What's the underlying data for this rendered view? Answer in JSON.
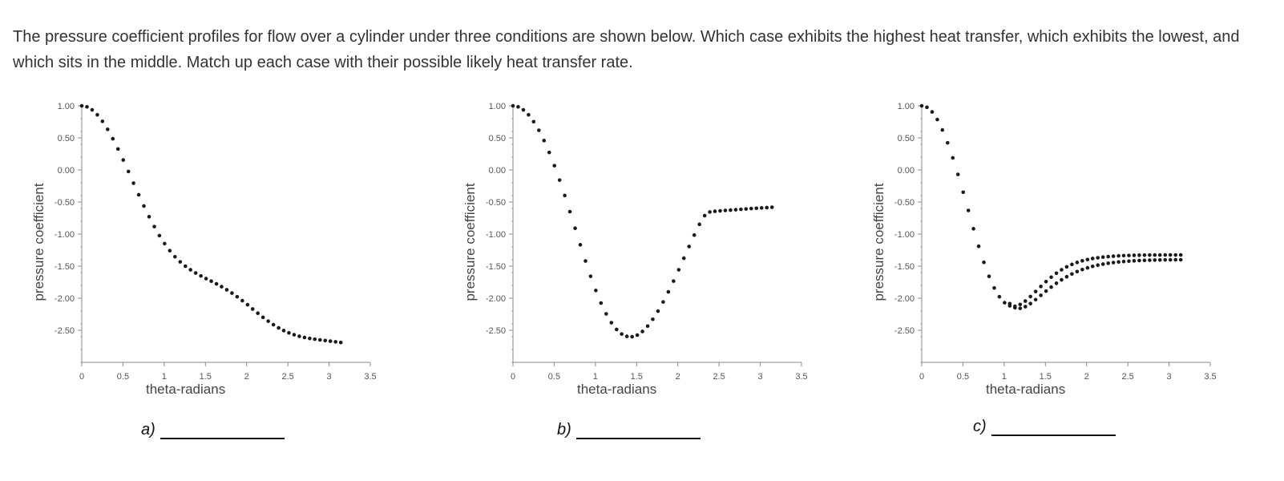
{
  "question": "The pressure coefficient profiles for flow over a cylinder under three conditions are shown below. Which case exhibits the highest heat transfer, which exhibits the lowest, and which sits in the middle. Match up each case with their possible likely heat transfer rate.",
  "answers": [
    {
      "label": "a)"
    },
    {
      "label": "b)"
    },
    {
      "label": "c)"
    }
  ],
  "chart_data": [
    {
      "type": "scatter",
      "title": "",
      "xlabel": "theta-radians",
      "ylabel": "pressure coefficient",
      "xlim": [
        0,
        3.5
      ],
      "ylim": [
        -3.0,
        1.0
      ],
      "x_ticks": [
        "0",
        "0.5",
        "1",
        "1.5",
        "2",
        "2.5",
        "3",
        "3.5"
      ],
      "y_ticks": [
        "1.00",
        "0.50",
        "0.00",
        "-0.50",
        "-1.00",
        "-1.50",
        "-2.00",
        "-2.50"
      ],
      "grid": false,
      "series": [
        {
          "x": [
            0.0,
            0.063,
            0.126,
            0.189,
            0.251,
            0.314,
            0.377,
            0.44,
            0.503,
            0.566,
            0.628,
            0.691,
            0.754,
            0.817,
            0.88,
            0.942,
            1.005,
            1.068,
            1.131,
            1.194,
            1.257,
            1.319,
            1.382,
            1.445,
            1.508,
            1.571,
            1.634,
            1.696,
            1.759,
            1.822,
            1.885,
            1.948,
            2.011,
            2.073,
            2.136,
            2.199,
            2.262,
            2.325,
            2.388,
            2.45,
            2.513,
            2.576,
            2.639,
            2.702,
            2.765,
            2.827,
            2.89,
            2.953,
            3.016,
            3.079,
            3.142
          ],
          "y": [
            1.0,
            0.984,
            0.937,
            0.86,
            0.758,
            0.633,
            0.487,
            0.327,
            0.155,
            -0.024,
            -0.206,
            -0.387,
            -0.562,
            -0.729,
            -0.883,
            -1.024,
            -1.149,
            -1.259,
            -1.353,
            -1.433,
            -1.5,
            -1.557,
            -1.607,
            -1.652,
            -1.694,
            -1.734,
            -1.776,
            -1.82,
            -1.868,
            -1.92,
            -1.977,
            -2.038,
            -2.102,
            -2.168,
            -2.234,
            -2.298,
            -2.358,
            -2.413,
            -2.462,
            -2.504,
            -2.54,
            -2.569,
            -2.593,
            -2.612,
            -2.627,
            -2.639,
            -2.65,
            -2.66,
            -2.67,
            -2.68,
            -2.69
          ]
        }
      ]
    },
    {
      "type": "scatter",
      "title": "",
      "xlabel": "theta-radians",
      "ylabel": "pressure coefficient",
      "xlim": [
        0,
        3.5
      ],
      "ylim": [
        -3.0,
        1.0
      ],
      "x_ticks": [
        "0",
        "0.5",
        "1",
        "1.5",
        "2",
        "2.5",
        "3",
        "3.5"
      ],
      "y_ticks": [
        "1.00",
        "0.50",
        "0.00",
        "-0.50",
        "-1.00",
        "-1.50",
        "-2.00",
        "-2.50"
      ],
      "grid": false,
      "series": [
        {
          "x": [
            0.0,
            0.063,
            0.126,
            0.189,
            0.251,
            0.314,
            0.377,
            0.44,
            0.503,
            0.566,
            0.628,
            0.691,
            0.754,
            0.817,
            0.88,
            0.942,
            1.005,
            1.068,
            1.131,
            1.194,
            1.257,
            1.319,
            1.382,
            1.445,
            1.508,
            1.571,
            1.634,
            1.696,
            1.759,
            1.822,
            1.885,
            1.948,
            2.011,
            2.073,
            2.136,
            2.199,
            2.262,
            2.325,
            2.388,
            2.45,
            2.513,
            2.576,
            2.639,
            2.702,
            2.765,
            2.827,
            2.89,
            2.953,
            3.016,
            3.079,
            3.142
          ],
          "y": [
            1.0,
            0.984,
            0.937,
            0.86,
            0.753,
            0.618,
            0.458,
            0.273,
            0.067,
            -0.158,
            -0.398,
            -0.65,
            -0.909,
            -1.167,
            -1.419,
            -1.658,
            -1.879,
            -2.075,
            -2.244,
            -2.382,
            -2.487,
            -2.558,
            -2.595,
            -2.6,
            -2.575,
            -2.518,
            -2.435,
            -2.328,
            -2.201,
            -2.058,
            -1.901,
            -1.733,
            -1.557,
            -1.376,
            -1.194,
            -1.015,
            -0.848,
            -0.712,
            -0.655,
            -0.645,
            -0.638,
            -0.632,
            -0.626,
            -0.62,
            -0.614,
            -0.608,
            -0.602,
            -0.597,
            -0.592,
            -0.587,
            -0.582
          ]
        }
      ]
    },
    {
      "type": "scatter",
      "title": "",
      "xlabel": "theta-radians",
      "ylabel": "pressure coefficient",
      "xlim": [
        0,
        3.5
      ],
      "ylim": [
        -3.0,
        1.0
      ],
      "x_ticks": [
        "0",
        "0.5",
        "1",
        "1.5",
        "2",
        "2.5",
        "3",
        "3.5"
      ],
      "y_ticks": [
        "1.00",
        "0.50",
        "0.00",
        "-0.50",
        "-1.00",
        "-1.50",
        "-2.00",
        "-2.50"
      ],
      "grid": false,
      "series": [
        {
          "x": [
            0.0,
            0.063,
            0.126,
            0.189,
            0.251,
            0.314,
            0.377,
            0.44,
            0.503,
            0.566,
            0.628,
            0.691,
            0.754,
            0.817,
            0.88,
            0.942,
            1.005,
            1.068,
            1.131,
            1.194,
            1.257,
            1.319,
            1.382,
            1.445,
            1.508,
            1.571,
            1.634,
            1.696,
            1.759,
            1.822,
            1.885,
            1.948,
            2.011,
            2.073,
            2.136,
            2.199,
            2.262,
            2.325,
            2.388,
            2.45,
            2.513,
            2.576,
            2.639,
            2.702,
            2.765,
            2.827,
            2.89,
            2.953,
            3.016,
            3.079,
            3.142
          ],
          "y": [
            1.0,
            0.977,
            0.905,
            0.786,
            0.624,
            0.423,
            0.189,
            -0.07,
            -0.347,
            -0.632,
            -0.917,
            -1.19,
            -1.44,
            -1.659,
            -1.84,
            -1.977,
            -2.07,
            -2.118,
            -2.125,
            -2.097,
            -2.044,
            -1.974,
            -1.896,
            -1.817,
            -1.741,
            -1.672,
            -1.61,
            -1.556,
            -1.511,
            -1.473,
            -1.442,
            -1.417,
            -1.397,
            -1.381,
            -1.369,
            -1.359,
            -1.351,
            -1.345,
            -1.34,
            -1.336,
            -1.333,
            -1.331,
            -1.329,
            -1.328,
            -1.327,
            -1.326,
            -1.326,
            -1.325,
            -1.325,
            -1.325,
            -1.325
          ]
        },
        {
          "x": [
            1.068,
            1.131,
            1.194,
            1.257,
            1.319,
            1.382,
            1.445,
            1.508,
            1.571,
            1.634,
            1.696,
            1.759,
            1.822,
            1.885,
            1.948,
            2.011,
            2.073,
            2.136,
            2.199,
            2.262,
            2.325,
            2.388,
            2.45,
            2.513,
            2.576,
            2.639,
            2.702,
            2.765,
            2.827,
            2.89,
            2.953,
            3.016,
            3.079,
            3.142
          ],
          "y": [
            -2.085,
            -2.148,
            -2.158,
            -2.132,
            -2.084,
            -2.022,
            -1.955,
            -1.889,
            -1.826,
            -1.767,
            -1.713,
            -1.665,
            -1.622,
            -1.585,
            -1.553,
            -1.526,
            -1.503,
            -1.484,
            -1.468,
            -1.455,
            -1.444,
            -1.435,
            -1.428,
            -1.422,
            -1.417,
            -1.413,
            -1.41,
            -1.407,
            -1.405,
            -1.403,
            -1.402,
            -1.401,
            -1.4,
            -1.4
          ]
        }
      ]
    }
  ]
}
